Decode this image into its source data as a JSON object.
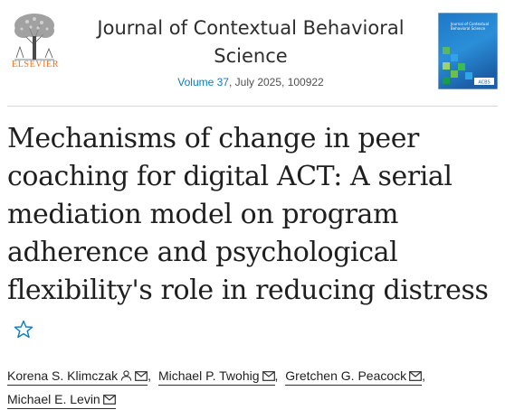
{
  "header": {
    "publisher": "ELSEVIER",
    "journal_title": "Journal of Contextual Behavioral Science",
    "volume_link": "Volume 37",
    "issue_rest": ", July 2025, 100922",
    "cover_title": "Journal of Contextual Behavioral Science",
    "cover_logo": "ACBS"
  },
  "article": {
    "title": "Mechanisms of change in peer coaching for digital ACT: A serial mediation model on program adherence and psychological flexibility's role in reducing distress"
  },
  "authors": [
    {
      "name": "Korena S. Klimczak",
      "icons": [
        "person-icon",
        "mail-icon"
      ]
    },
    {
      "name": "Michael P. Twohig",
      "icons": [
        "mail-icon"
      ]
    },
    {
      "name": "Gretchen G. Peacock",
      "icons": [
        "mail-icon"
      ]
    },
    {
      "name": "Michael E. Levin",
      "icons": [
        "mail-icon"
      ]
    }
  ],
  "separator": ",",
  "colors": {
    "link": "#0c7dbb",
    "elsevier_orange": "#e9711c",
    "star": "#0c7dbb",
    "cover_blue": "#1f77c8",
    "cover_green": "#5cb85c"
  }
}
